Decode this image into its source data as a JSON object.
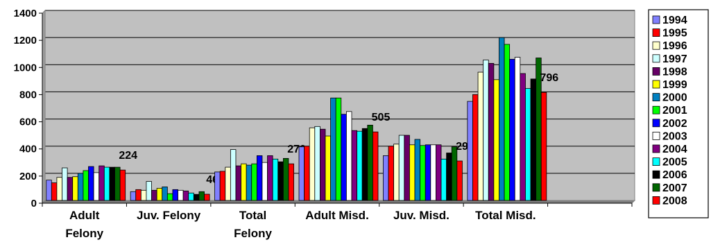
{
  "chart_data": {
    "type": "bar",
    "title": "",
    "xlabel": "",
    "ylabel": "",
    "ylim": [
      0,
      1400
    ],
    "yticks": [
      0,
      200,
      400,
      600,
      800,
      1000,
      1200,
      1400
    ],
    "grid": true,
    "legend_position": "right",
    "plot_background": "#c0c0c0",
    "categories": [
      [
        "Adult",
        "Felony"
      ],
      [
        "Juv. Felony"
      ],
      [
        "Total",
        "Felony"
      ],
      [
        "Adult Misd."
      ],
      [
        "Juv. Misd."
      ],
      [
        "Total Misd."
      ]
    ],
    "series": [
      {
        "name": "1994",
        "color": "#8080ff",
        "values": [
          150,
          65,
          210,
          395,
          330,
          730
        ]
      },
      {
        "name": "1995",
        "color": "#ff0000",
        "values": [
          130,
          80,
          215,
          400,
          400,
          780
        ]
      },
      {
        "name": "1996",
        "color": "#ffffcc",
        "values": [
          170,
          75,
          245,
          535,
          415,
          945
        ]
      },
      {
        "name": "1997",
        "color": "#ccffff",
        "values": [
          240,
          140,
          375,
          545,
          480,
          1035
        ]
      },
      {
        "name": "1998",
        "color": "#660066",
        "values": [
          170,
          75,
          255,
          525,
          480,
          1010
        ]
      },
      {
        "name": "1999",
        "color": "#ffff00",
        "values": [
          175,
          90,
          270,
          475,
          410,
          890
        ]
      },
      {
        "name": "2000",
        "color": "#0080c0",
        "values": [
          200,
          100,
          260,
          755,
          450,
          1200
        ]
      },
      {
        "name": "2001",
        "color": "#00ff00",
        "values": [
          220,
          50,
          270,
          755,
          405,
          1150
        ]
      },
      {
        "name": "2002",
        "color": "#0000ff",
        "values": [
          250,
          80,
          330,
          635,
          410,
          1040
        ]
      },
      {
        "name": "2003",
        "color": "#ffffff",
        "values": [
          205,
          75,
          280,
          655,
          410,
          1055
        ]
      },
      {
        "name": "2004",
        "color": "#800080",
        "values": [
          255,
          70,
          330,
          515,
          410,
          935
        ]
      },
      {
        "name": "2005",
        "color": "#00ffff",
        "values": [
          245,
          55,
          305,
          510,
          305,
          825
        ]
      },
      {
        "name": "2006",
        "color": "#000000",
        "values": [
          245,
          45,
          285,
          530,
          350,
          895
        ]
      },
      {
        "name": "2007",
        "color": "#006600",
        "values": [
          245,
          65,
          310,
          555,
          395,
          1050
        ]
      },
      {
        "name": "2008",
        "color": "#ff0000",
        "values": [
          224,
          46,
          270,
          505,
          291,
          796
        ]
      }
    ],
    "annotations": [
      "224",
      "46",
      "270",
      "505",
      "291",
      "796"
    ]
  }
}
